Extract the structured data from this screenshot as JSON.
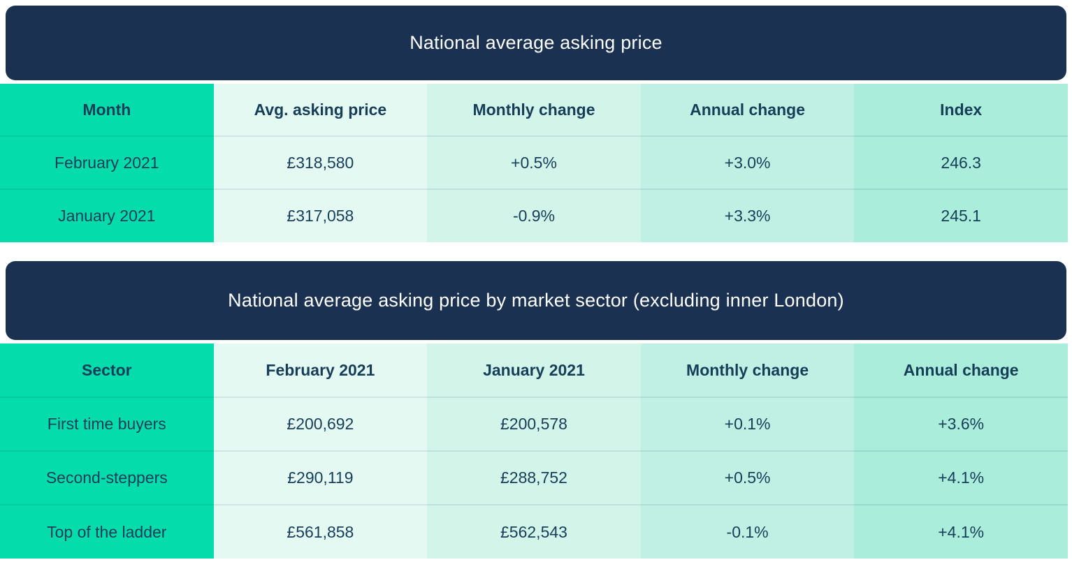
{
  "colors": {
    "banner_navy": "#1b3151",
    "accent_green": "#04dcab",
    "mint_col2": "#e4f9f2",
    "mint_col3": "#d2f4e9",
    "mint_col4": "#bff0e3",
    "mint_col5": "#a9edda",
    "cell_text": "#173e59",
    "green_cell_text": "#0d5260",
    "title_text": "#ffffff"
  },
  "chart_data": [
    {
      "type": "table",
      "title": "National average asking price",
      "columns": [
        "Month",
        "Avg. asking price",
        "Monthly change",
        "Annual change",
        "Index"
      ],
      "rows": [
        [
          "February 2021",
          "£318,580",
          "+0.5%",
          "+3.0%",
          "246.3"
        ],
        [
          "January 2021",
          "£317,058",
          "-0.9%",
          "+3.3%",
          "245.1"
        ]
      ]
    },
    {
      "type": "table",
      "title": "National average asking price by market sector (excluding inner London)",
      "columns": [
        "Sector",
        "February 2021",
        "January 2021",
        "Monthly change",
        "Annual change"
      ],
      "rows": [
        [
          "First time buyers",
          "£200,692",
          "£200,578",
          "+0.1%",
          "+3.6%"
        ],
        [
          "Second-steppers",
          "£290,119",
          "£288,752",
          "+0.5%",
          "+4.1%"
        ],
        [
          "Top of the ladder",
          "£561,858",
          "£562,543",
          "-0.1%",
          "+4.1%"
        ]
      ]
    }
  ]
}
